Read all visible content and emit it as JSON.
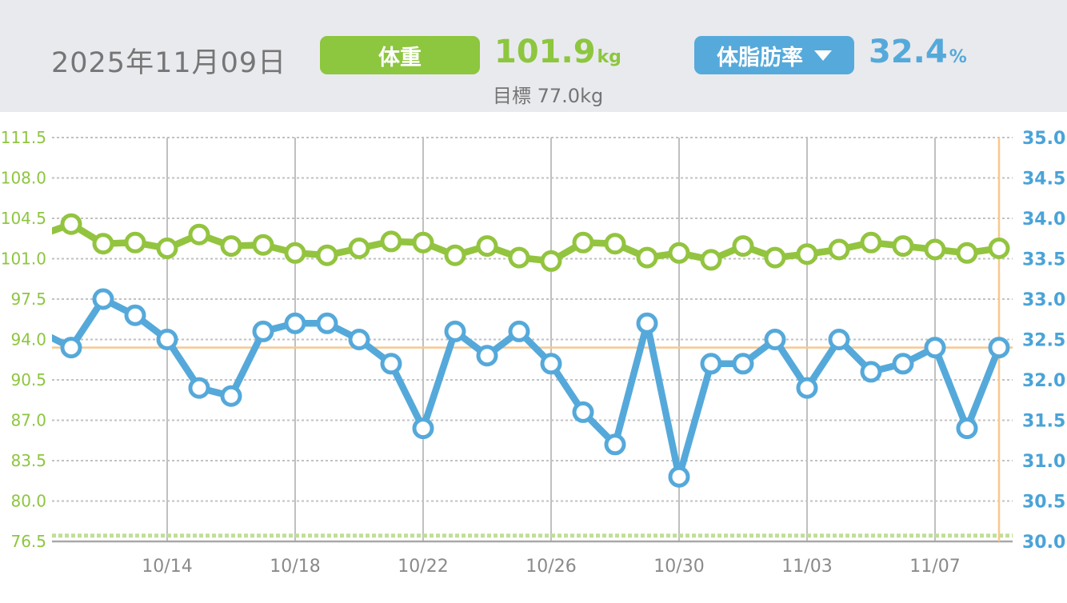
{
  "header": {
    "date": "2025年11月09日",
    "weight": {
      "label": "体重",
      "value": "101.9",
      "unit": "kg",
      "goal_label": "目標 77.0kg"
    },
    "bodyfat": {
      "label": "体脂肪率",
      "value": "32.4",
      "unit": "%"
    }
  },
  "colors": {
    "green": "#8dc63f",
    "green_line": "#93c43f",
    "green_goal": "#c0df96",
    "blue": "#55a9da",
    "blue_label": "#4aa3d8",
    "orange_crosshair": "#f8c88e",
    "grid_vertical": "#9e9e9e",
    "grid_horizontal": "#c2c2c2",
    "axis_line": "#a8a8a8",
    "text_gray": "#8a8a8a"
  },
  "chart_data": {
    "type": "line",
    "title": "",
    "grid": true,
    "legend_position": "none",
    "dates": [
      "10/10",
      "10/11",
      "10/12",
      "10/13",
      "10/14",
      "10/15",
      "10/16",
      "10/17",
      "10/18",
      "10/19",
      "10/20",
      "10/21",
      "10/22",
      "10/23",
      "10/24",
      "10/25",
      "10/26",
      "10/27",
      "10/28",
      "10/29",
      "10/30",
      "10/31",
      "11/01",
      "11/02",
      "11/03",
      "11/04",
      "11/05",
      "11/06",
      "11/07",
      "11/08",
      "11/09"
    ],
    "x_tick_labels": [
      "10/14",
      "10/18",
      "10/22",
      "10/26",
      "10/30",
      "11/03",
      "11/07"
    ],
    "x_tick_day_indices": [
      4,
      8,
      12,
      16,
      20,
      24,
      28
    ],
    "series": [
      {
        "name": "体重",
        "unit": "kg",
        "axis": "left",
        "values": [
          103.0,
          104.0,
          102.3,
          102.4,
          101.9,
          103.1,
          102.1,
          102.2,
          101.5,
          101.3,
          101.9,
          102.5,
          102.4,
          101.3,
          102.1,
          101.1,
          100.8,
          102.4,
          102.3,
          101.1,
          101.5,
          100.9,
          102.1,
          101.1,
          101.4,
          101.8,
          102.4,
          102.1,
          101.8,
          101.5,
          101.9
        ]
      },
      {
        "name": "体脂肪率",
        "unit": "%",
        "axis": "right",
        "values": [
          32.6,
          32.4,
          33.0,
          32.8,
          32.5,
          31.9,
          31.8,
          32.6,
          32.7,
          32.7,
          32.5,
          32.2,
          31.4,
          32.6,
          32.3,
          32.6,
          32.2,
          31.6,
          31.2,
          32.7,
          30.8,
          32.2,
          32.2,
          32.5,
          31.9,
          32.5,
          32.1,
          32.2,
          32.4,
          31.4,
          32.4
        ]
      }
    ],
    "left_axis": {
      "min": 76.5,
      "max": 111.5,
      "step": 3.5,
      "ticks": [
        "111.5",
        "108.0",
        "104.5",
        "101.0",
        "97.5",
        "94.0",
        "90.5",
        "87.0",
        "83.5",
        "80.0",
        "76.5"
      ]
    },
    "right_axis": {
      "min": 30.0,
      "max": 35.0,
      "step": 0.5,
      "ticks": [
        "35.0",
        "34.5",
        "34.0",
        "33.5",
        "33.0",
        "32.5",
        "32.0",
        "31.5",
        "31.0",
        "30.5",
        "30.0"
      ]
    },
    "goal_line": {
      "axis": "left",
      "value": 77.0
    },
    "crosshair": {
      "date": "11/09",
      "day_index": 30,
      "right_axis_value": 32.4
    }
  }
}
